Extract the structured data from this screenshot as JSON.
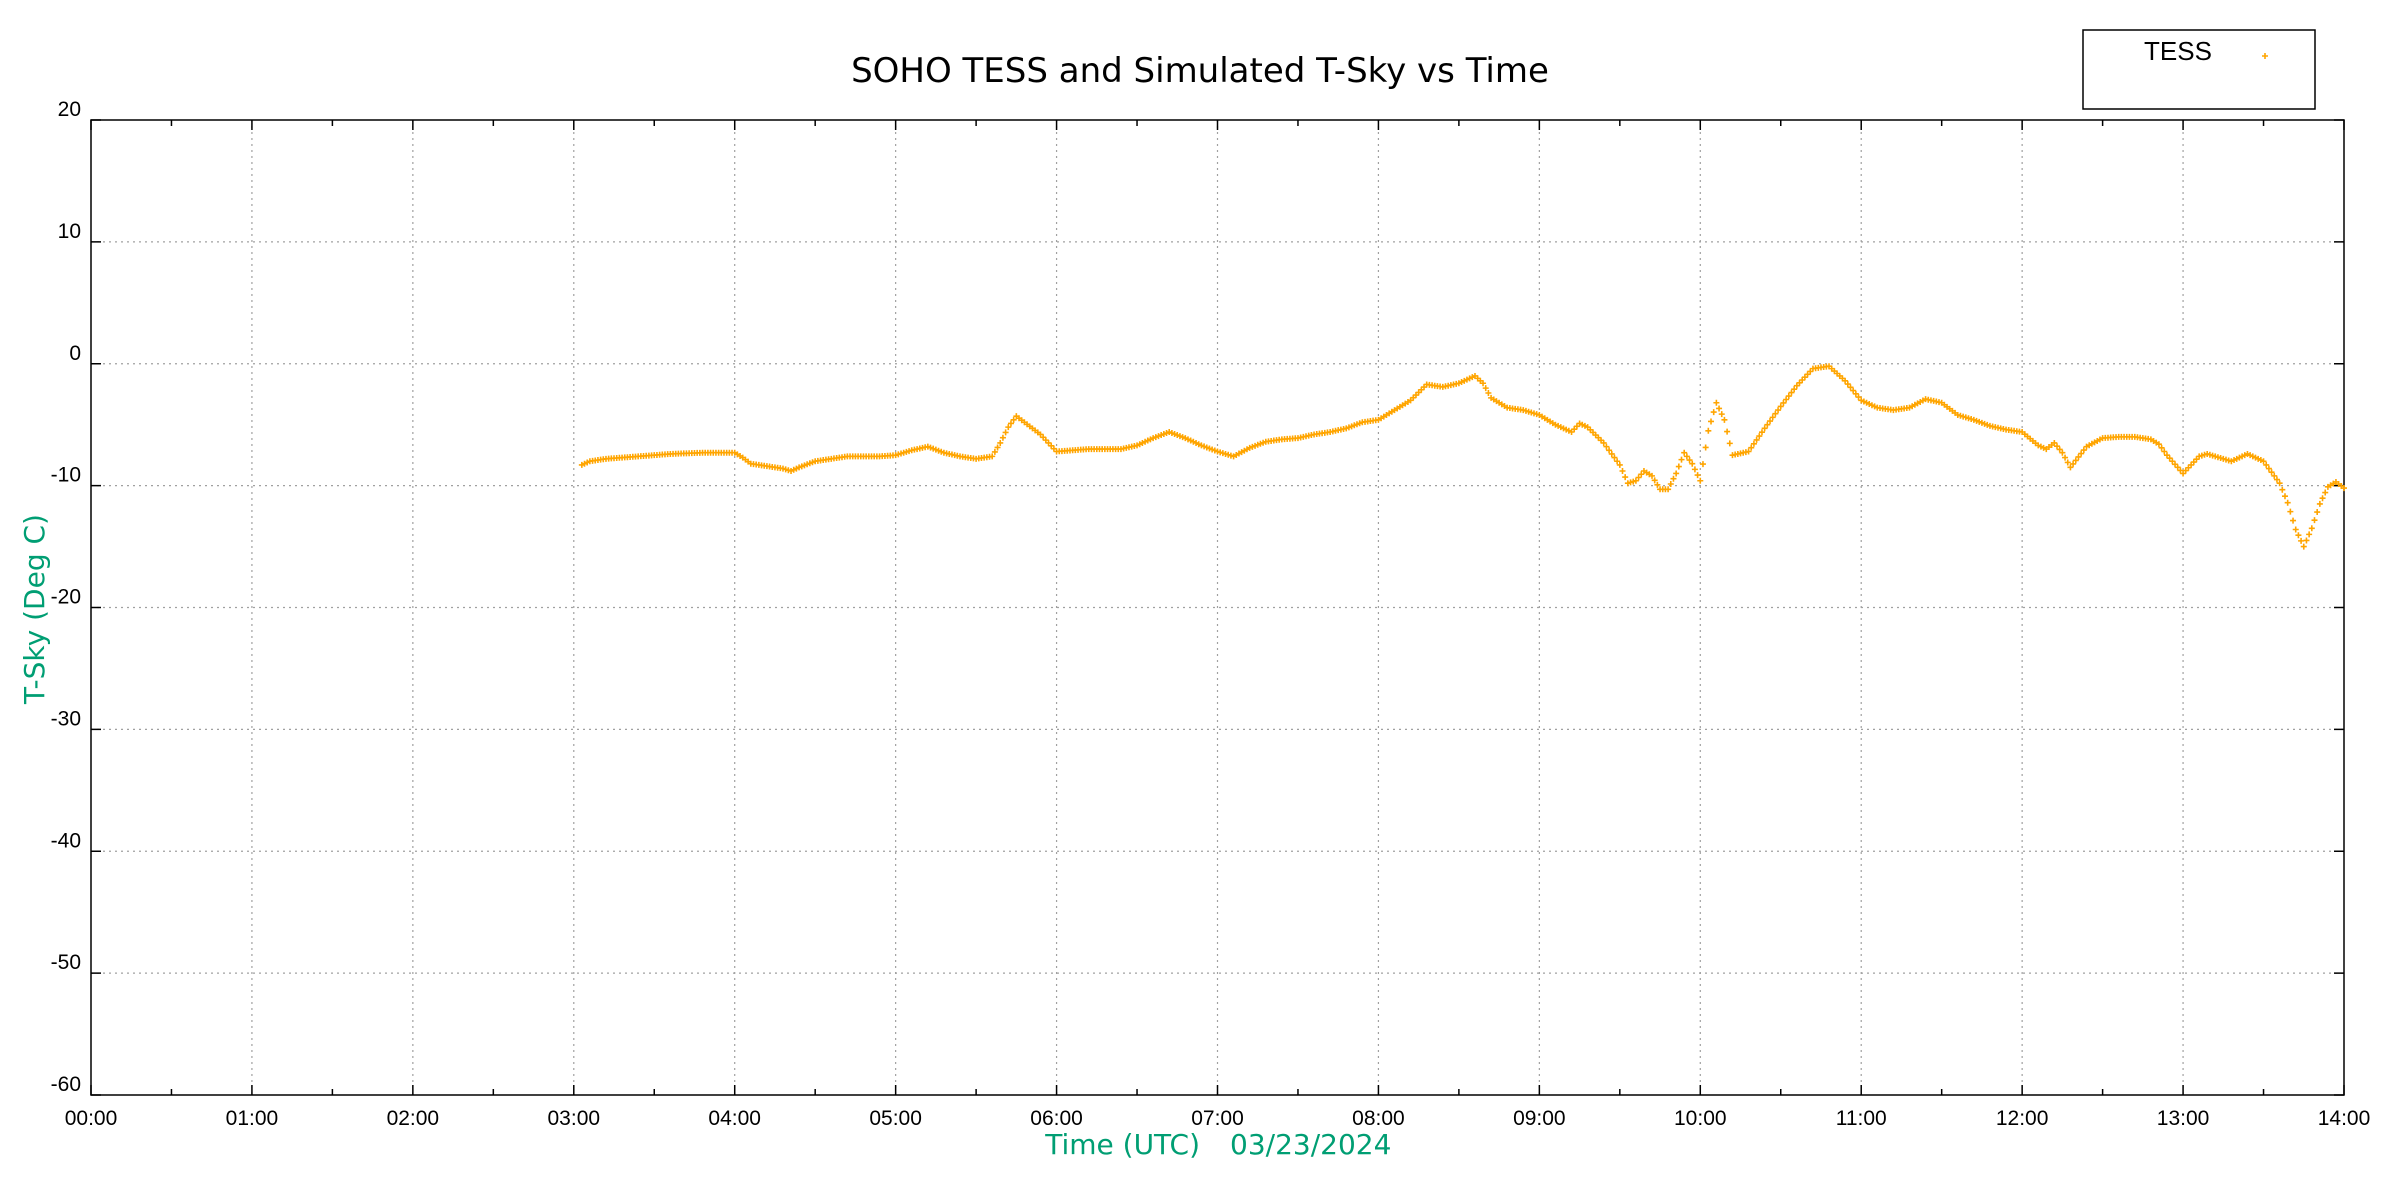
{
  "chart_data": {
    "type": "scatter",
    "title": "SOHO TESS and Simulated T-Sky vs Time",
    "xlabel": "Time (UTC)",
    "xlabel_date": "03/23/2024",
    "ylabel": "T-Sky (Deg C)",
    "xlim_hours": [
      0,
      14
    ],
    "ylim": [
      -60,
      20
    ],
    "x_ticks": [
      "00:00",
      "01:00",
      "02:00",
      "03:00",
      "04:00",
      "05:00",
      "06:00",
      "07:00",
      "08:00",
      "09:00",
      "10:00",
      "11:00",
      "12:00",
      "13:00",
      "14:00"
    ],
    "y_ticks": [
      "20",
      "10",
      "0",
      "-10",
      "-20",
      "-30",
      "-40",
      "-50",
      "-60"
    ],
    "grid": true,
    "legend_position": "top-right",
    "series": [
      {
        "name": "TESS",
        "color": "#ffa500",
        "marker": "plus",
        "x": [
          3.05,
          3.1,
          3.2,
          3.3,
          3.4,
          3.5,
          3.6,
          3.7,
          3.8,
          3.9,
          4.0,
          4.05,
          4.1,
          4.2,
          4.3,
          4.35,
          4.4,
          4.5,
          4.6,
          4.7,
          4.8,
          4.9,
          5.0,
          5.1,
          5.2,
          5.3,
          5.4,
          5.5,
          5.6,
          5.65,
          5.7,
          5.75,
          5.8,
          5.9,
          6.0,
          6.1,
          6.2,
          6.3,
          6.4,
          6.5,
          6.6,
          6.7,
          6.8,
          6.9,
          7.0,
          7.1,
          7.2,
          7.3,
          7.4,
          7.5,
          7.6,
          7.7,
          7.8,
          7.9,
          8.0,
          8.1,
          8.2,
          8.3,
          8.4,
          8.5,
          8.6,
          8.65,
          8.7,
          8.8,
          8.9,
          9.0,
          9.1,
          9.2,
          9.25,
          9.3,
          9.4,
          9.5,
          9.55,
          9.6,
          9.65,
          9.7,
          9.75,
          9.8,
          9.85,
          9.9,
          9.95,
          10.0,
          10.05,
          10.1,
          10.15,
          10.2,
          10.3,
          10.4,
          10.5,
          10.6,
          10.7,
          10.8,
          10.9,
          11.0,
          11.1,
          11.2,
          11.3,
          11.4,
          11.5,
          11.6,
          11.7,
          11.8,
          11.9,
          12.0,
          12.1,
          12.15,
          12.2,
          12.25,
          12.3,
          12.4,
          12.5,
          12.6,
          12.7,
          12.8,
          12.85,
          12.9,
          13.0,
          13.1,
          13.15,
          13.2,
          13.3,
          13.4,
          13.5,
          13.6,
          13.65,
          13.7,
          13.75,
          13.8,
          13.85,
          13.9,
          13.95,
          14.0
        ],
        "y": [
          -8.3,
          -8.0,
          -7.8,
          -7.7,
          -7.6,
          -7.5,
          -7.4,
          -7.35,
          -7.3,
          -7.3,
          -7.3,
          -7.7,
          -8.2,
          -8.4,
          -8.6,
          -8.8,
          -8.5,
          -8.0,
          -7.8,
          -7.6,
          -7.6,
          -7.6,
          -7.5,
          -7.1,
          -6.8,
          -7.3,
          -7.6,
          -7.8,
          -7.6,
          -6.5,
          -5.2,
          -4.3,
          -4.8,
          -5.8,
          -7.2,
          -7.1,
          -7.0,
          -7.0,
          -7.0,
          -6.7,
          -6.1,
          -5.6,
          -6.1,
          -6.7,
          -7.2,
          -7.6,
          -6.9,
          -6.4,
          -6.2,
          -6.1,
          -5.8,
          -5.6,
          -5.3,
          -4.8,
          -4.6,
          -3.8,
          -3.0,
          -1.7,
          -1.9,
          -1.6,
          -1.0,
          -1.6,
          -2.8,
          -3.6,
          -3.8,
          -4.2,
          -5.0,
          -5.6,
          -4.9,
          -5.2,
          -6.5,
          -8.3,
          -9.8,
          -9.6,
          -8.8,
          -9.2,
          -10.3,
          -10.3,
          -9.0,
          -7.3,
          -8.2,
          -9.6,
          -5.5,
          -3.2,
          -4.6,
          -7.5,
          -7.2,
          -5.3,
          -3.5,
          -1.8,
          -0.4,
          -0.2,
          -1.4,
          -3.0,
          -3.6,
          -3.8,
          -3.6,
          -2.9,
          -3.2,
          -4.2,
          -4.6,
          -5.1,
          -5.4,
          -5.6,
          -6.7,
          -7.0,
          -6.5,
          -7.3,
          -8.5,
          -6.8,
          -6.1,
          -6.0,
          -6.0,
          -6.2,
          -6.6,
          -7.5,
          -9.0,
          -7.6,
          -7.4,
          -7.6,
          -8.0,
          -7.4,
          -8.0,
          -9.8,
          -11.4,
          -13.6,
          -15.0,
          -13.5,
          -11.5,
          -10.1,
          -9.7,
          -10.2
        ]
      }
    ]
  }
}
